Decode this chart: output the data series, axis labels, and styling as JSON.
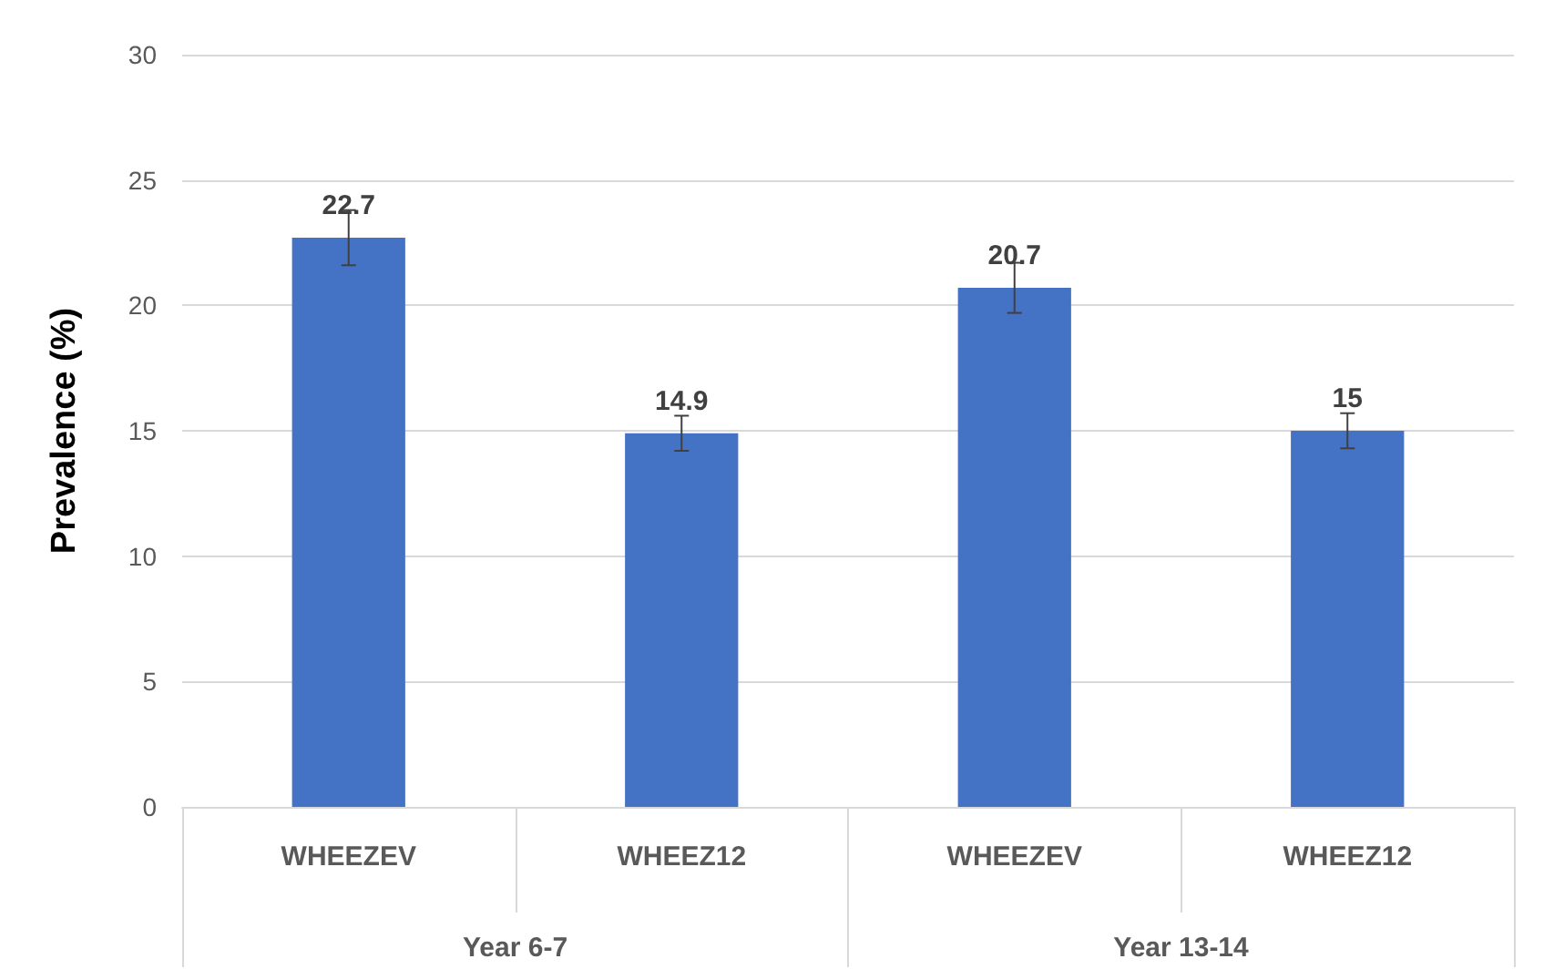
{
  "chart_data": {
    "type": "bar",
    "ylabel": "Prevalence (%)",
    "categories": [
      "WHEEZEV",
      "WHEEZ12",
      "WHEEZEV",
      "WHEEZ12"
    ],
    "values": [
      22.7,
      14.9,
      20.7,
      15
    ],
    "errors": [
      1.1,
      0.7,
      1.0,
      0.7
    ],
    "color": "#4472c4",
    "ylim": [
      0,
      30
    ],
    "yticks": [
      0,
      5,
      10,
      15,
      20,
      25,
      30
    ],
    "grid": "y",
    "data_labels": true,
    "annotations": [
      "Year 6-7",
      "Year 13-14"
    ]
  }
}
